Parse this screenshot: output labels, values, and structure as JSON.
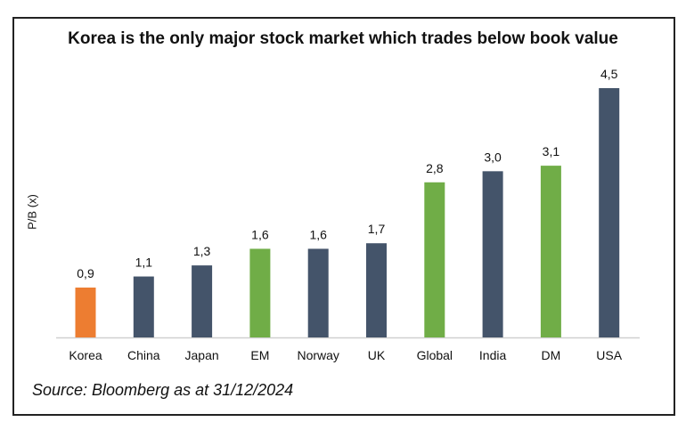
{
  "chart_data": {
    "type": "bar",
    "title": "Korea is the only major stock market which trades below book value",
    "ylabel": "P/B (x)",
    "xlabel": "",
    "categories": [
      "Korea",
      "China",
      "Japan",
      "EM",
      "Norway",
      "UK",
      "Global",
      "India",
      "DM",
      "USA"
    ],
    "values": [
      0.9,
      1.1,
      1.3,
      1.6,
      1.6,
      1.7,
      2.8,
      3.0,
      3.1,
      4.5
    ],
    "data_labels": [
      "0,9",
      "1,1",
      "1,3",
      "1,6",
      "1,6",
      "1,7",
      "2,8",
      "3,0",
      "3,1",
      "4,5"
    ],
    "bar_colors": [
      "#ED7D31",
      "#44546A",
      "#44546A",
      "#70AD47",
      "#44546A",
      "#44546A",
      "#70AD47",
      "#44546A",
      "#70AD47",
      "#44546A"
    ],
    "ylim": [
      0,
      4.5
    ],
    "grid": false,
    "legend": "none"
  },
  "footer": {
    "source": "Source: Bloomberg as at 31/12/2024"
  }
}
